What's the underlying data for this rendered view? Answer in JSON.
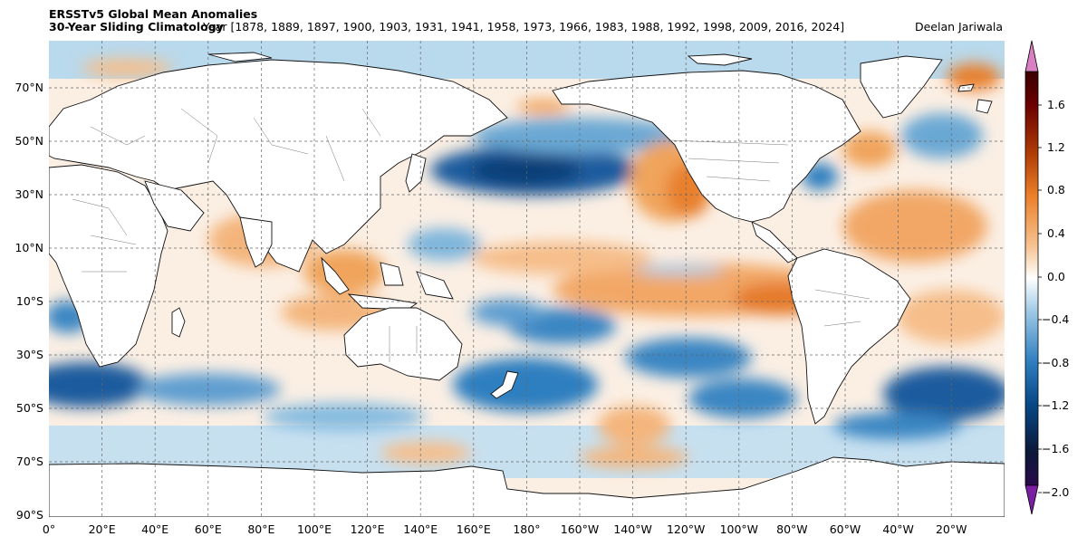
{
  "title": {
    "line1": "ERSSTv5 Global Mean Anomalies",
    "line2": "30-Year Sliding Climatology",
    "years_label": "Year [1878, 1889, 1897, 1900, 1903, 1931, 1941, 1958, 1973, 1966, 1983, 1988, 1992, 1998, 2009, 2016, 2024]",
    "author": "Deelan Jariwala"
  },
  "map": {
    "projection": "PlateCarree",
    "central_longitude": 180,
    "lat_range": [
      -90,
      85
    ],
    "lon_range": [
      0,
      360
    ],
    "gridlines": "dashed",
    "lon_ticks": [
      "0°",
      "20°E",
      "40°E",
      "60°E",
      "80°E",
      "100°E",
      "120°E",
      "140°E",
      "160°E",
      "180°",
      "160°W",
      "140°W",
      "120°W",
      "100°W",
      "80°W",
      "60°W",
      "40°W",
      "20°W"
    ],
    "lat_ticks": [
      "70°N",
      "50°N",
      "30°N",
      "10°N",
      "10°S",
      "30°S",
      "50°S",
      "70°S",
      "90°S"
    ]
  },
  "colorbar": {
    "ticks": [
      "1.6",
      "1.2",
      "0.8",
      "0.4",
      "0.0",
      "−0.4",
      "−0.8",
      "−1.2",
      "−1.6",
      "−2.0"
    ],
    "range": [
      -2.0,
      2.0
    ],
    "extend": "both",
    "colors": [
      "#7b1fa2",
      "#0a1a3a",
      "#084a8a",
      "#2f7fc0",
      "#9ec9e6",
      "#ffffff",
      "#f6c28f",
      "#ec7f2a",
      "#b13d06",
      "#6a0000",
      "#d97fc4"
    ]
  }
}
